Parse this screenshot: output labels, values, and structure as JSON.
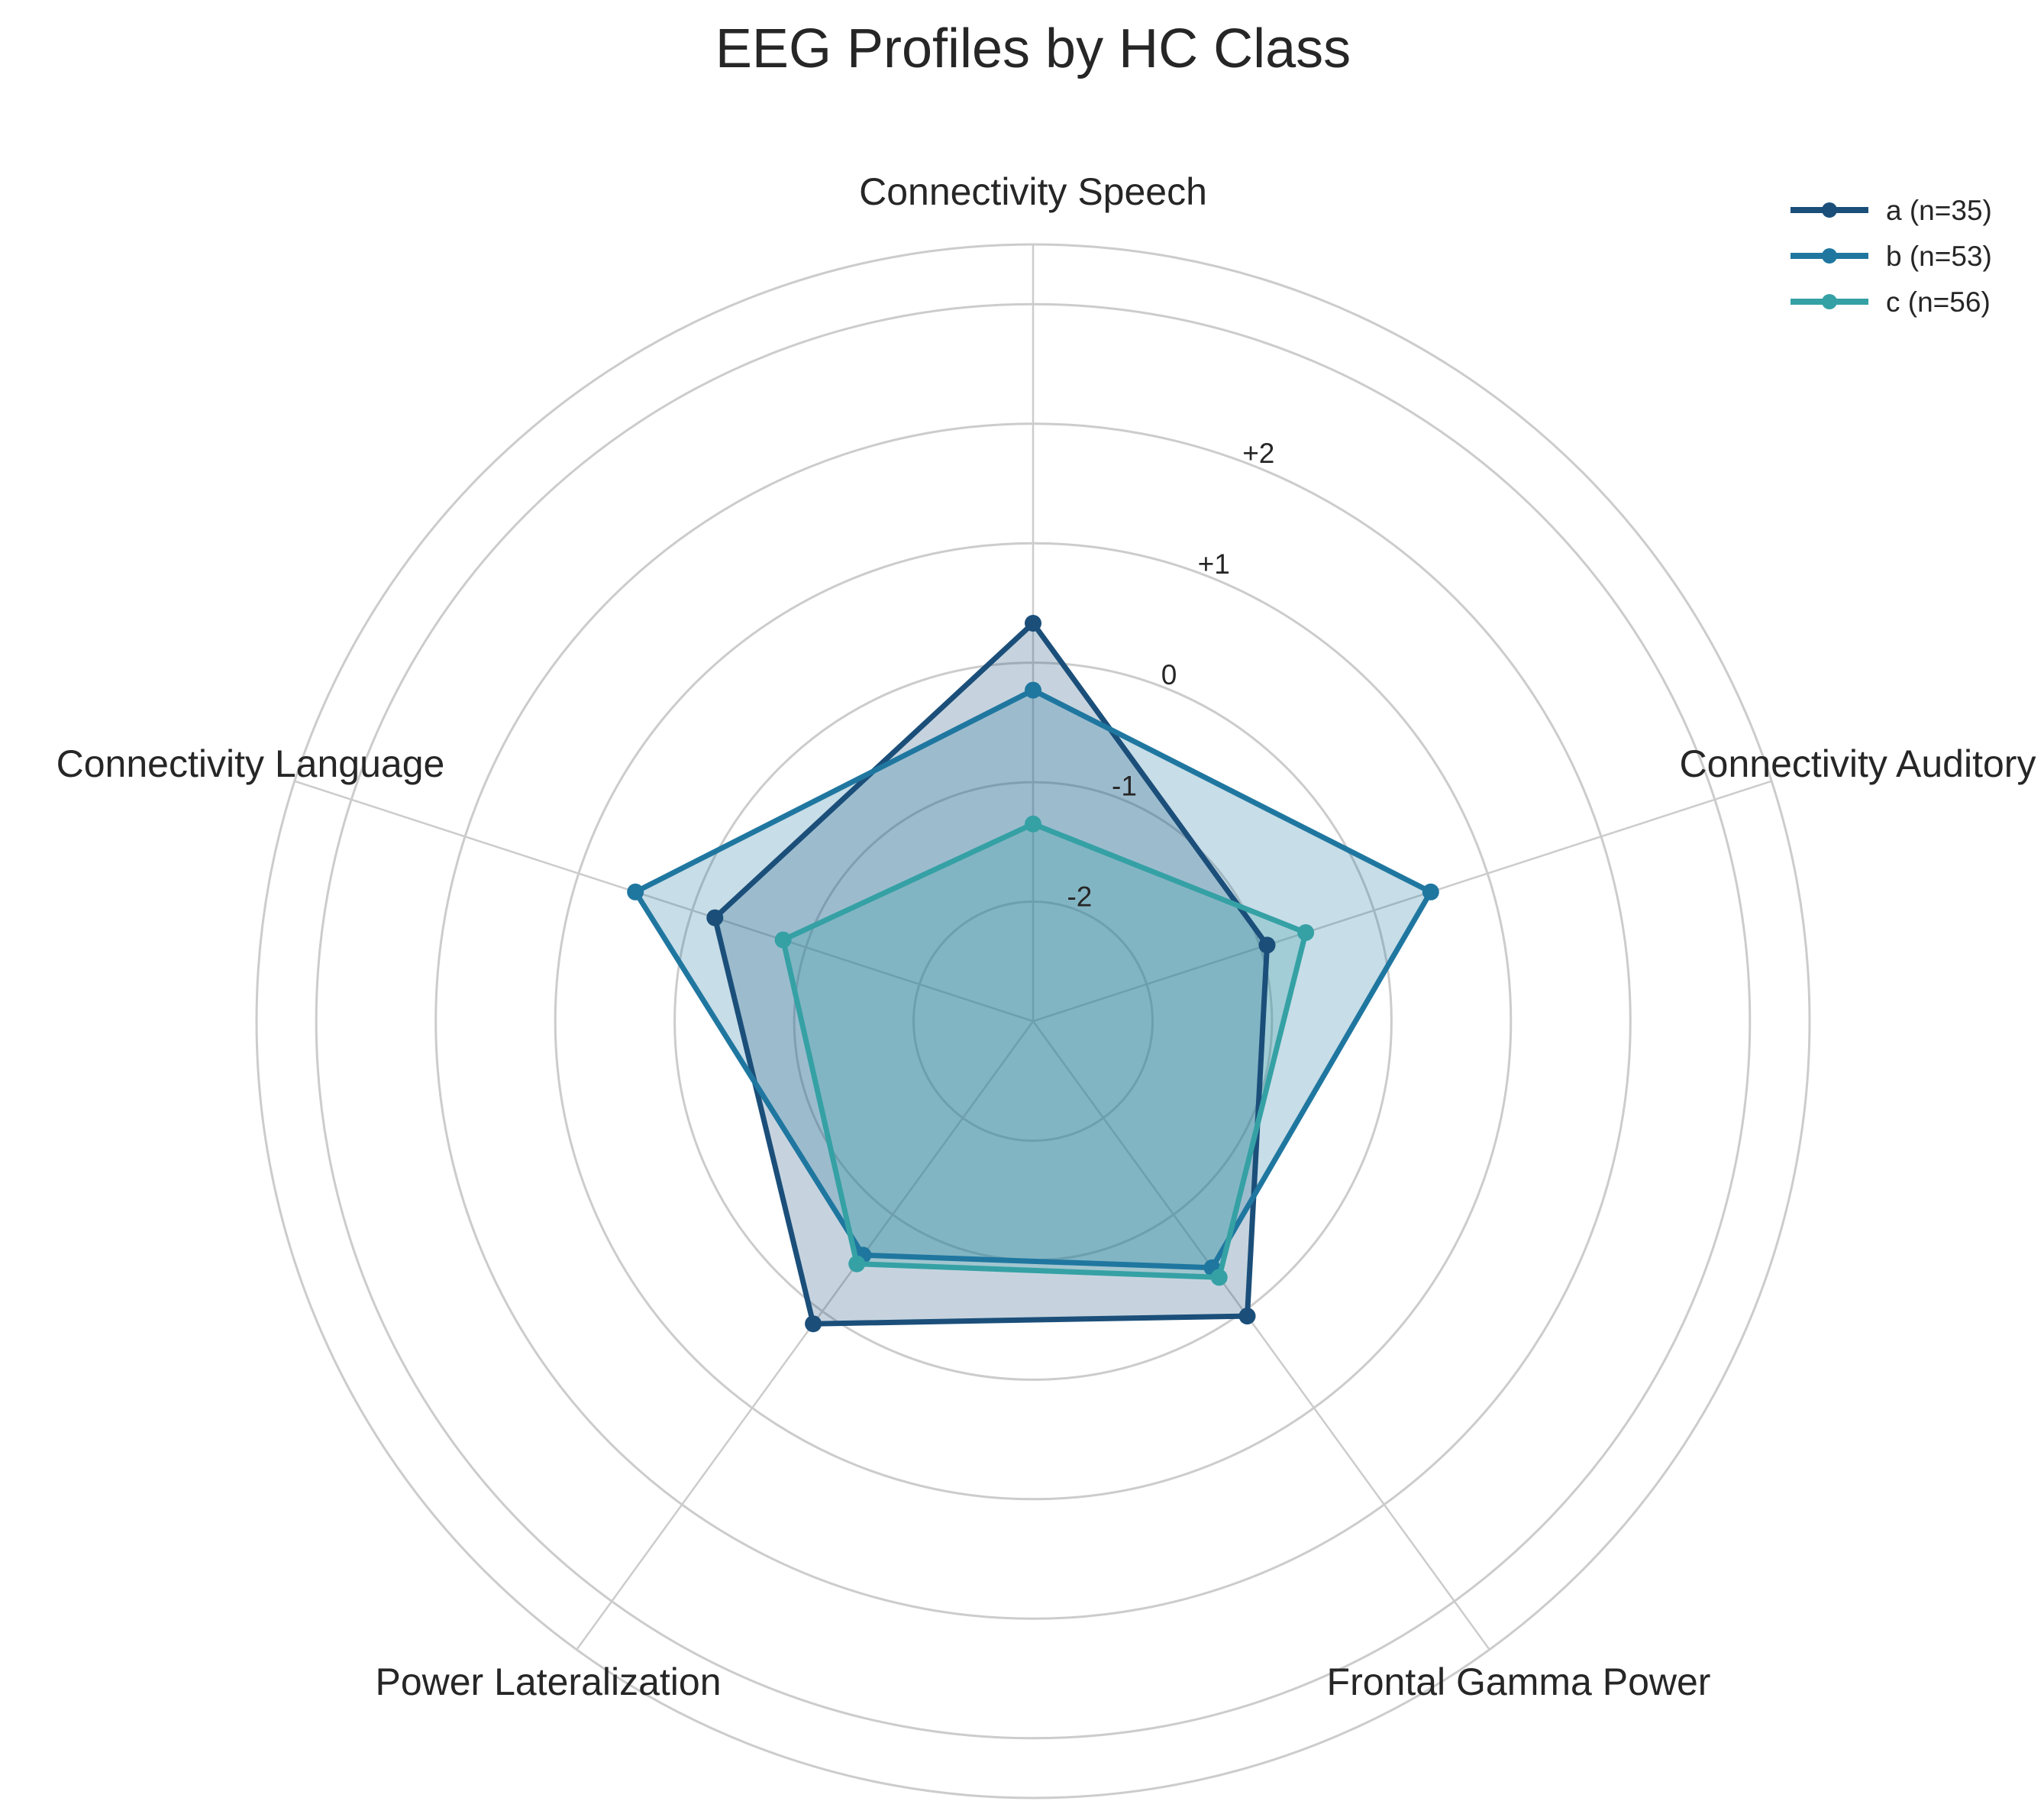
{
  "chart_data": {
    "type": "radar",
    "title": "EEG Profiles by HC Class",
    "axes": [
      "Connectivity Speech",
      "Connectivity Auditory",
      "Frontal Gamma Power",
      "Power Lateralization",
      "Connectivity Language"
    ],
    "radial_range": [
      -3,
      3.5
    ],
    "radial_ticks": [
      -2,
      -1,
      0,
      1,
      2
    ],
    "radial_tick_labels": [
      "-2",
      "-1",
      "0",
      "+1",
      "+2"
    ],
    "grid": true,
    "legend_position": "top-right",
    "series": [
      {
        "name": "a (n=35)",
        "color": "#1b4f7a",
        "fill_opacity": 0.25,
        "values": [
          0.33,
          -0.94,
          0.05,
          0.13,
          -0.2
        ]
      },
      {
        "name": "b (n=53)",
        "color": "#1f77a0",
        "fill_opacity": 0.25,
        "values": [
          -0.23,
          0.5,
          -0.45,
          -0.58,
          0.5
        ]
      },
      {
        "name": "c (n=56)",
        "color": "#35a1a5",
        "fill_opacity": 0.25,
        "values": [
          -1.35,
          -0.6,
          -0.35,
          -0.49,
          -0.8
        ]
      }
    ]
  }
}
